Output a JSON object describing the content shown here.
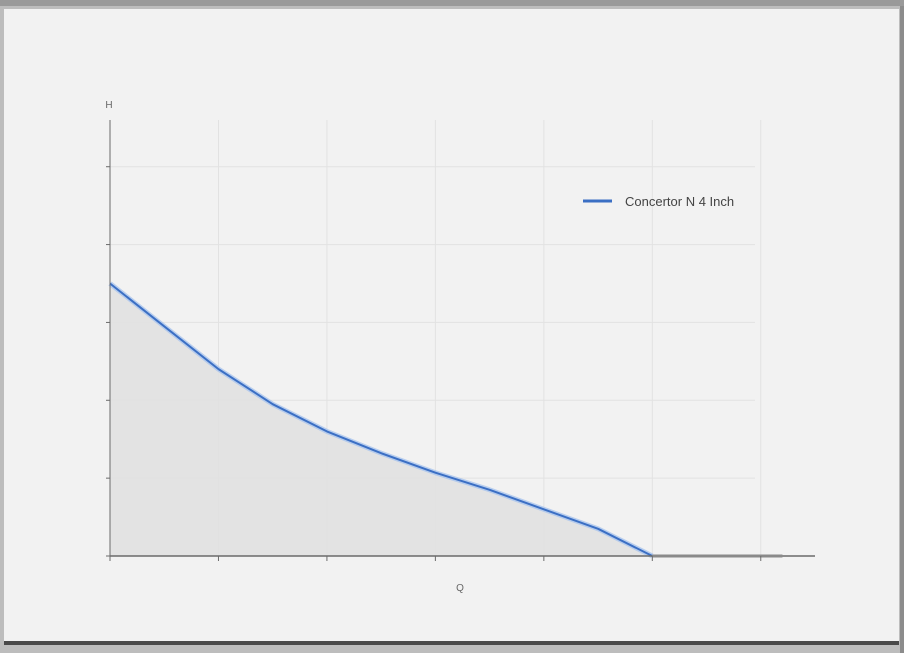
{
  "chart_data": {
    "type": "area",
    "title": "",
    "xlabel": "Q",
    "ylabel": "H",
    "xlim": [
      0,
      6.5
    ],
    "ylim": [
      0,
      5.6
    ],
    "grid": true,
    "legend_position": "top-right",
    "series": [
      {
        "name": "Concertor N 4 Inch",
        "color": "#3b6fc4",
        "x": [
          0,
          0.5,
          1,
          1.5,
          2,
          2.5,
          3,
          3.5,
          4,
          4.5,
          5
        ],
        "y": [
          3.5,
          2.95,
          2.4,
          1.95,
          1.6,
          1.32,
          1.07,
          0.85,
          0.6,
          0.35,
          0.0
        ]
      }
    ]
  }
}
